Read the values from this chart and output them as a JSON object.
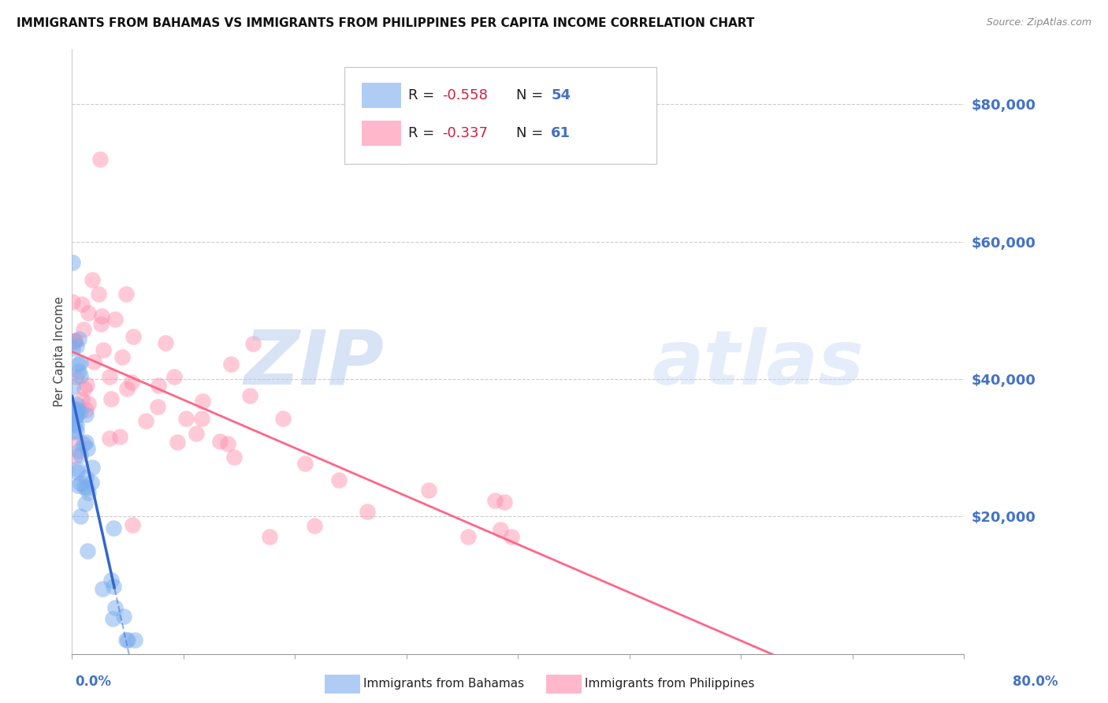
{
  "title": "IMMIGRANTS FROM BAHAMAS VS IMMIGRANTS FROM PHILIPPINES PER CAPITA INCOME CORRELATION CHART",
  "source": "Source: ZipAtlas.com",
  "ylabel": "Per Capita Income",
  "y_tick_labels": [
    "$20,000",
    "$40,000",
    "$60,000",
    "$80,000"
  ],
  "y_tick_values": [
    20000,
    40000,
    60000,
    80000
  ],
  "y_tick_color": "#4472c4",
  "x_tick_color": "#4472c4",
  "legend_text1": "R = -0.558   N = 54",
  "legend_text2": "R = -0.337   N =  61",
  "series1_label": "Immigrants from Bahamas",
  "series2_label": "Immigrants from Philippines",
  "series1_color": "#7aadee",
  "series2_color": "#ff88aa",
  "trend1_color": "#3366cc",
  "trend2_color": "#ff6688",
  "background_color": "#ffffff",
  "xlim": [
    0,
    0.8
  ],
  "ylim": [
    0,
    88000
  ],
  "legend_r_color": "#cc2244",
  "legend_n_color": "#4472c4",
  "watermark_zip_color": "#b8ccee",
  "watermark_atlas_color": "#c8d8f4"
}
